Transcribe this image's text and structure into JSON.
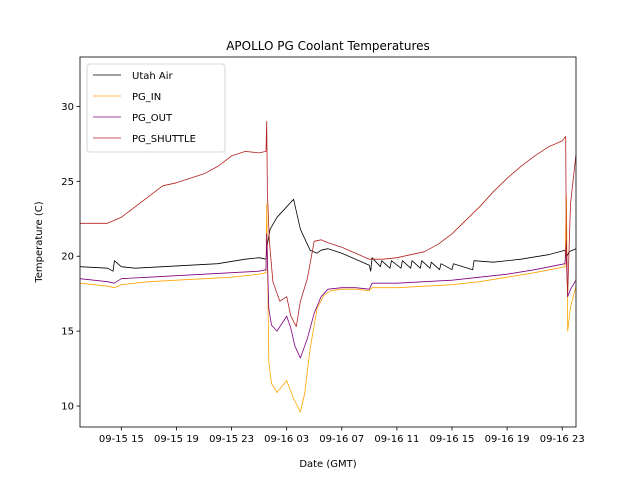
{
  "chart_data": {
    "type": "line",
    "title": "APOLLO PG Coolant Temperatures",
    "xlabel": "Date (GMT)",
    "ylabel": "Temperature (C)",
    "x_unit": "hours since 09-15 00:00 GMT",
    "xlim": [
      12.0,
      48.0
    ],
    "ylim": [
      8.6,
      33.3
    ],
    "grid": false,
    "legend_position": "top-left",
    "x_ticks": [
      {
        "value": 15,
        "label": "09-15 15"
      },
      {
        "value": 19,
        "label": "09-15 19"
      },
      {
        "value": 23,
        "label": "09-15 23"
      },
      {
        "value": 27,
        "label": "09-16 03"
      },
      {
        "value": 31,
        "label": "09-16 07"
      },
      {
        "value": 35,
        "label": "09-16 11"
      },
      {
        "value": 39,
        "label": "09-16 15"
      },
      {
        "value": 43,
        "label": "09-16 19"
      },
      {
        "value": 47,
        "label": "09-16 23"
      }
    ],
    "y_ticks": [
      {
        "value": 10,
        "label": "10"
      },
      {
        "value": 15,
        "label": "15"
      },
      {
        "value": 20,
        "label": "20"
      },
      {
        "value": 25,
        "label": "25"
      },
      {
        "value": 30,
        "label": "30"
      }
    ],
    "series": [
      {
        "name": "Utah Air",
        "color": "#000000",
        "x": [
          12.0,
          14.0,
          14.4,
          14.5,
          15.0,
          16.0,
          18.0,
          20.0,
          22.0,
          24.0,
          25.0,
          25.5,
          25.6,
          25.8,
          26.3,
          27.0,
          27.5,
          28.0,
          28.7,
          29.2,
          29.5,
          30.0,
          31.0,
          32.0,
          33.0,
          33.1,
          33.2,
          33.8,
          33.9,
          34.5,
          34.6,
          35.3,
          35.4,
          36.0,
          36.1,
          36.7,
          36.8,
          37.4,
          37.5,
          38.1,
          38.2,
          39.0,
          39.1,
          40.5,
          40.6,
          42.0,
          44.0,
          46.0,
          47.2,
          47.3,
          47.5,
          48.0
        ],
        "y": [
          19.3,
          19.2,
          19.0,
          19.7,
          19.3,
          19.2,
          19.3,
          19.4,
          19.5,
          19.8,
          19.9,
          19.8,
          20.8,
          21.8,
          22.6,
          23.3,
          23.8,
          21.8,
          20.4,
          20.2,
          20.4,
          20.5,
          20.2,
          19.8,
          19.4,
          19.0,
          19.9,
          19.3,
          19.7,
          19.2,
          19.7,
          19.2,
          19.7,
          19.2,
          19.7,
          19.2,
          19.7,
          19.2,
          19.6,
          19.1,
          19.5,
          19.1,
          19.5,
          19.1,
          19.7,
          19.6,
          19.8,
          20.1,
          20.4,
          19.9,
          20.3,
          20.5
        ]
      },
      {
        "name": "PG_IN",
        "color": "#ffa500",
        "x": [
          12.0,
          14.0,
          14.5,
          15.0,
          17.0,
          19.0,
          21.0,
          23.0,
          25.0,
          25.5,
          25.55,
          25.7,
          25.9,
          26.3,
          27.0,
          27.5,
          28.0,
          28.3,
          28.7,
          29.2,
          29.7,
          30.2,
          31.0,
          32.0,
          33.0,
          33.2,
          35.0,
          37.0,
          39.0,
          41.0,
          43.0,
          45.0,
          47.2,
          47.3,
          47.4,
          47.6,
          48.0
        ],
        "y": [
          18.2,
          18.0,
          17.9,
          18.1,
          18.3,
          18.4,
          18.5,
          18.6,
          18.8,
          18.9,
          23.5,
          13.0,
          11.5,
          10.9,
          11.7,
          10.5,
          9.6,
          10.8,
          13.8,
          16.5,
          17.4,
          17.7,
          17.8,
          17.8,
          17.7,
          17.9,
          17.9,
          18.0,
          18.1,
          18.3,
          18.6,
          18.9,
          19.3,
          24.0,
          15.0,
          16.6,
          18.0
        ]
      },
      {
        "name": "PG_OUT",
        "color": "#800080",
        "x": [
          12.0,
          14.0,
          14.5,
          15.0,
          17.0,
          19.0,
          21.0,
          23.0,
          25.0,
          25.5,
          25.55,
          25.7,
          25.9,
          26.3,
          27.0,
          27.3,
          27.6,
          28.0,
          28.5,
          29.0,
          29.5,
          30.0,
          31.0,
          32.0,
          33.0,
          33.2,
          35.0,
          37.0,
          39.0,
          41.0,
          43.0,
          45.0,
          47.2,
          47.3,
          47.4,
          47.6,
          48.0
        ],
        "y": [
          18.5,
          18.3,
          18.2,
          18.5,
          18.6,
          18.7,
          18.8,
          18.9,
          19.0,
          19.1,
          21.5,
          16.5,
          15.4,
          15.0,
          16.0,
          15.2,
          14.0,
          13.2,
          14.5,
          16.2,
          17.3,
          17.8,
          17.9,
          17.9,
          17.8,
          18.2,
          18.2,
          18.3,
          18.4,
          18.6,
          18.8,
          19.1,
          19.5,
          21.0,
          17.3,
          17.8,
          18.4
        ]
      },
      {
        "name": "PG_SHUTTLE",
        "color": "#b22222",
        "x": [
          12.0,
          14.0,
          15.0,
          16.0,
          17.0,
          18.0,
          19.0,
          20.0,
          21.0,
          22.0,
          23.0,
          24.0,
          25.0,
          25.5,
          25.55,
          25.6,
          25.75,
          26.0,
          26.5,
          27.0,
          27.3,
          27.7,
          28.0,
          28.5,
          29.0,
          29.5,
          30.0,
          31.0,
          32.0,
          33.0,
          34.0,
          35.0,
          36.0,
          37.0,
          38.0,
          39.0,
          40.0,
          41.0,
          42.0,
          43.0,
          44.0,
          45.0,
          46.0,
          47.0,
          47.25,
          47.3,
          47.4,
          47.6,
          48.0
        ],
        "y": [
          22.2,
          22.2,
          22.6,
          23.3,
          24.0,
          24.7,
          24.9,
          25.2,
          25.5,
          26.0,
          26.7,
          27.0,
          26.9,
          27.0,
          29.0,
          24.2,
          21.0,
          18.3,
          17.0,
          17.3,
          16.0,
          15.3,
          17.0,
          18.5,
          21.0,
          21.1,
          20.9,
          20.6,
          20.2,
          19.8,
          19.8,
          19.9,
          20.1,
          20.3,
          20.8,
          21.5,
          22.4,
          23.3,
          24.3,
          25.2,
          26.0,
          26.7,
          27.3,
          27.7,
          28.0,
          19.5,
          17.5,
          23.5,
          26.8
        ]
      }
    ]
  }
}
